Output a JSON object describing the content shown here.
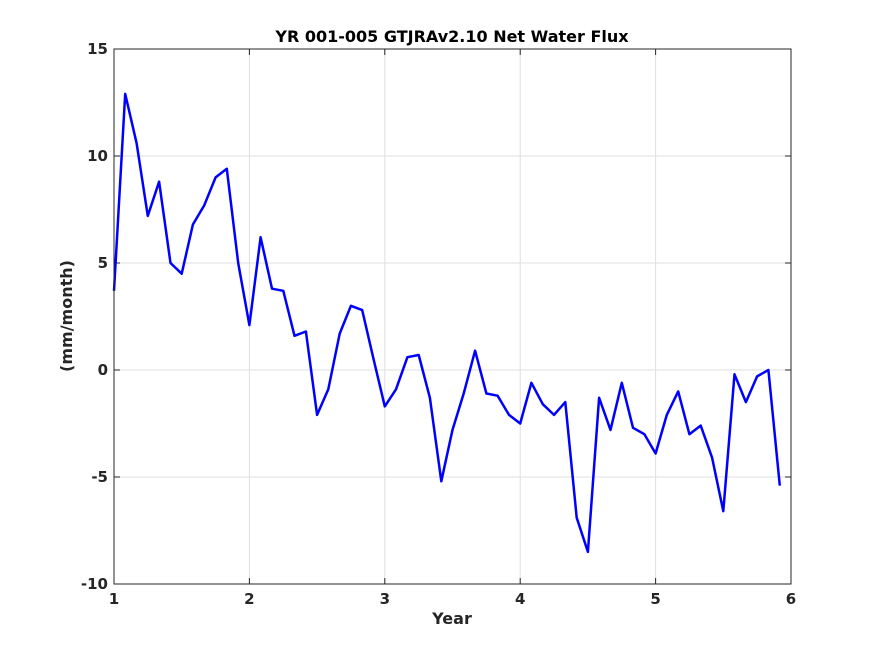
{
  "chart_data": {
    "type": "line",
    "title": "YR 001-005 GTJRAv2.10 Net Water Flux",
    "xlabel": "Year",
    "ylabel": "(mm/month)",
    "xlim": [
      1,
      6
    ],
    "ylim": [
      -10,
      15
    ],
    "xticks": [
      1,
      2,
      3,
      4,
      5,
      6
    ],
    "xtick_labels": [
      "1",
      "2",
      "3",
      "4",
      "5",
      "6"
    ],
    "yticks": [
      -10,
      -5,
      0,
      5,
      10,
      15
    ],
    "ytick_labels": [
      "-10",
      "-5",
      "0",
      "5",
      "10",
      "15"
    ],
    "grid": true,
    "line_color": "#0000ff",
    "series": [
      {
        "x": [
          1.0,
          1.083,
          1.167,
          1.25,
          1.333,
          1.417,
          1.5,
          1.583,
          1.667,
          1.75,
          1.833,
          1.917,
          2.0,
          2.083,
          2.167,
          2.25,
          2.333,
          2.417,
          2.5,
          2.583,
          2.667,
          2.75,
          2.833,
          2.917,
          3.0,
          3.083,
          3.167,
          3.25,
          3.333,
          3.417,
          3.5,
          3.583,
          3.667,
          3.75,
          3.833,
          3.917,
          4.0,
          4.083,
          4.167,
          4.25,
          4.333,
          4.417,
          4.5,
          4.583,
          4.667,
          4.75,
          4.833,
          4.917,
          5.0,
          5.083,
          5.167,
          5.25,
          5.333,
          5.417,
          5.5,
          5.583,
          5.667,
          5.75,
          5.833,
          5.917
        ],
        "values": [
          3.7,
          12.9,
          10.6,
          7.2,
          8.8,
          5.0,
          4.5,
          6.8,
          7.7,
          9.0,
          9.4,
          5.0,
          2.1,
          6.2,
          3.8,
          3.7,
          1.6,
          1.8,
          -2.1,
          -0.9,
          1.7,
          3.0,
          2.8,
          0.5,
          -1.7,
          -0.9,
          0.6,
          0.7,
          -1.3,
          -5.2,
          -2.8,
          -1.1,
          0.9,
          -1.1,
          -1.2,
          -2.1,
          -2.5,
          -0.6,
          -1.6,
          -2.1,
          -1.5,
          -6.9,
          -8.5,
          -1.3,
          -2.8,
          -0.6,
          -2.7,
          -3.0,
          -3.9,
          -2.1,
          -1.0,
          -3.0,
          -2.6,
          -4.1,
          -6.6,
          -0.2,
          -1.5,
          -0.3,
          0.0,
          -5.4
        ]
      }
    ]
  }
}
